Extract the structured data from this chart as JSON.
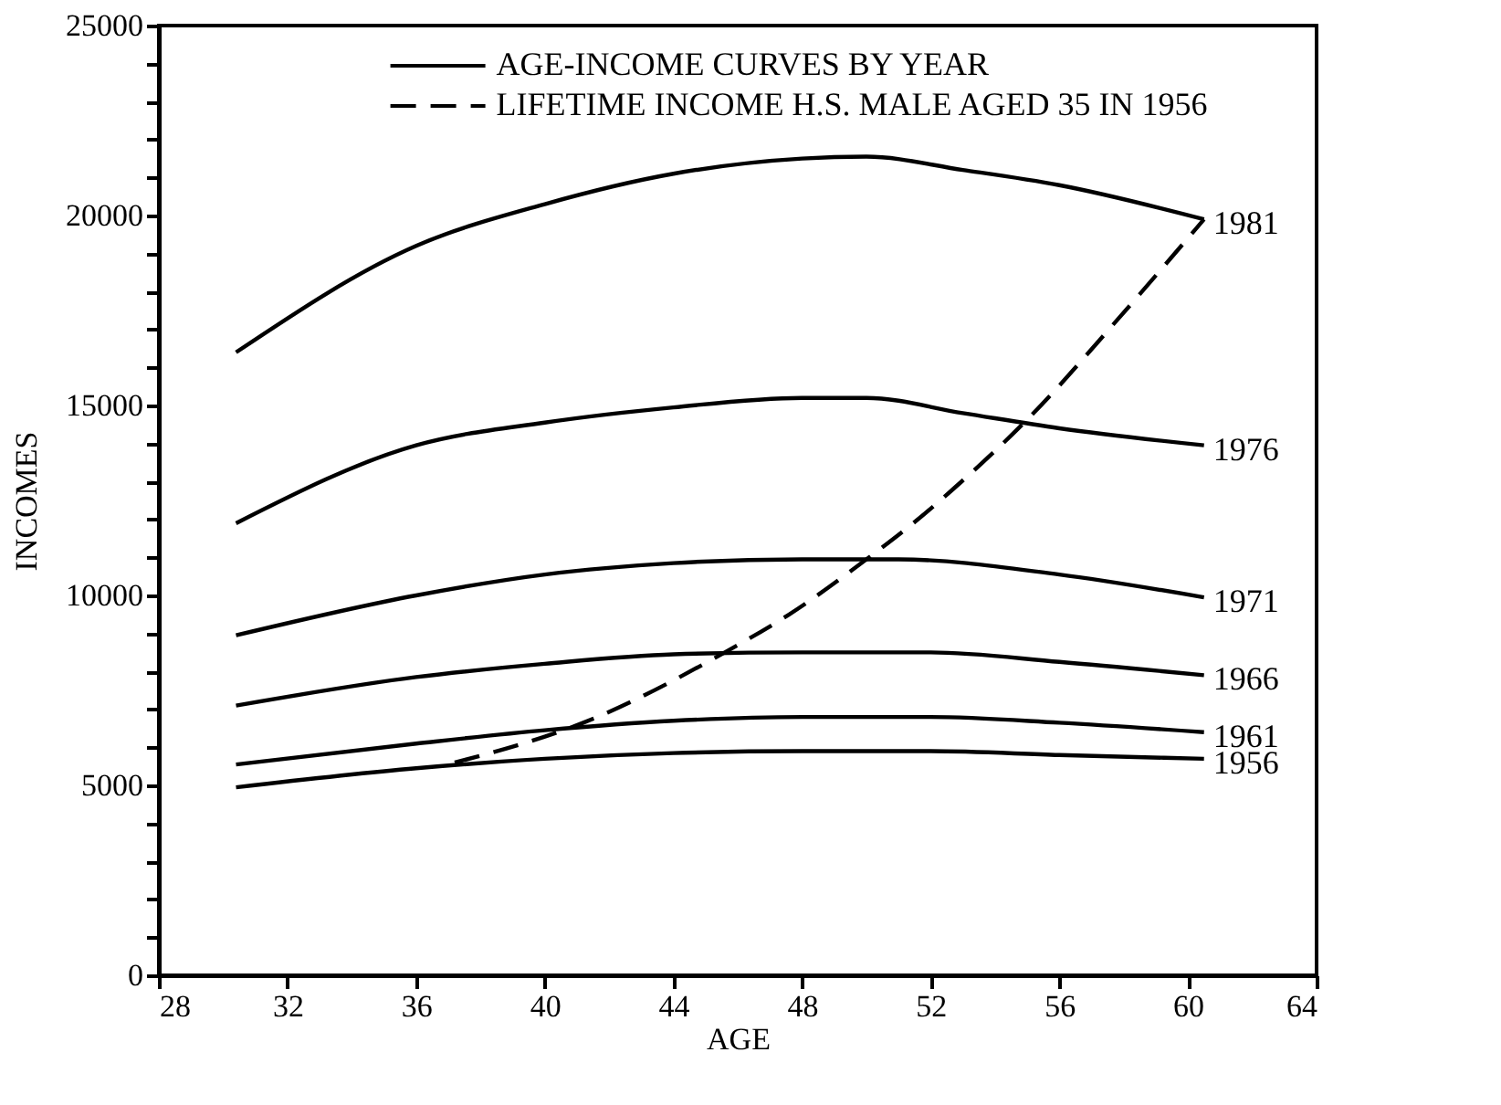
{
  "chart_data": {
    "type": "line",
    "xlabel": "AGE",
    "ylabel": "INCOMES",
    "annotations": [
      "AGE-INCOME CURVES BY YEAR"
    ],
    "xlim": [
      28,
      64
    ],
    "xticks": [
      28,
      32,
      36,
      40,
      44,
      48,
      52,
      56,
      60,
      64
    ],
    "ylim": [
      0,
      25000
    ],
    "yticks": [
      0,
      {
        "value": 1000,
        "label": null
      },
      {
        "value": 2000,
        "label": null
      },
      {
        "value": 3000,
        "label": null
      },
      {
        "value": 4000,
        "label": null
      },
      5000,
      {
        "value": 6000,
        "label": null
      },
      {
        "value": 7000,
        "label": null
      },
      {
        "value": 8000,
        "label": null
      },
      {
        "value": 9000,
        "label": null
      },
      10000,
      {
        "value": 11000,
        "label": null
      },
      {
        "value": 12000,
        "label": null
      },
      {
        "value": 13000,
        "label": null
      },
      {
        "value": 14000,
        "label": null
      },
      15000,
      {
        "value": 16000,
        "label": null
      },
      {
        "value": 17000,
        "label": null
      },
      {
        "value": 18000,
        "label": null
      },
      {
        "value": 19000,
        "label": null
      },
      20000,
      {
        "value": 21000,
        "label": null
      },
      {
        "value": 22000,
        "label": null
      },
      {
        "value": 23000,
        "label": null
      },
      {
        "value": 24000,
        "label": null
      },
      25000
    ],
    "grid": false,
    "legend": "top",
    "marker": "none",
    "series": [
      {
        "name": "1981",
        "color": "#000000",
        "line_style": "solid",
        "x": [
          30.4,
          36,
          40,
          44,
          48,
          50,
          53,
          56,
          60.5
        ],
        "values": [
          16400,
          19200,
          20300,
          21100,
          21500,
          21550,
          21200,
          20800,
          19900
        ]
      },
      {
        "name": "1976",
        "color": "#000000",
        "line_style": "solid",
        "x": [
          30.4,
          36,
          40,
          44,
          48,
          50,
          53,
          56,
          60.5
        ],
        "values": [
          11900,
          13950,
          14550,
          14950,
          15200,
          15200,
          14800,
          14400,
          13950
        ]
      },
      {
        "name": "1971",
        "color": "#000000",
        "line_style": "solid",
        "x": [
          30.4,
          36,
          40,
          44,
          48,
          51,
          56,
          60.5
        ],
        "values": [
          8950,
          10000,
          10550,
          10850,
          10950,
          10950,
          10550,
          9950
        ]
      },
      {
        "name": "1966",
        "color": "#000000",
        "line_style": "solid",
        "x": [
          30.4,
          36,
          40,
          44,
          48,
          52,
          56,
          60.5
        ],
        "values": [
          7100,
          7850,
          8200,
          8450,
          8500,
          8500,
          8250,
          7900
        ]
      },
      {
        "name": "1961",
        "color": "#000000",
        "line_style": "solid",
        "x": [
          30.4,
          36,
          40,
          44,
          48,
          52,
          56,
          60.5
        ],
        "values": [
          5550,
          6100,
          6450,
          6700,
          6800,
          6800,
          6650,
          6400
        ]
      },
      {
        "name": "1956",
        "color": "#000000",
        "line_style": "solid",
        "x": [
          30.4,
          36,
          40,
          44,
          48,
          52,
          56,
          60.5
        ],
        "values": [
          4950,
          5450,
          5700,
          5850,
          5900,
          5900,
          5800,
          5700
        ]
      },
      {
        "name": "LIFETIME INCOME H.S. MALE AGED 35 IN 1956",
        "color": "#000000",
        "line_style": "dashed",
        "x": [
          37.2,
          41.2,
          45.7,
          47.6,
          50,
          51.6,
          52.7,
          55.2,
          57.8,
          60.5
        ],
        "values": [
          5600,
          6650,
          8550,
          9500,
          10950,
          12000,
          12800,
          14800,
          17250,
          19900
        ]
      }
    ]
  }
}
